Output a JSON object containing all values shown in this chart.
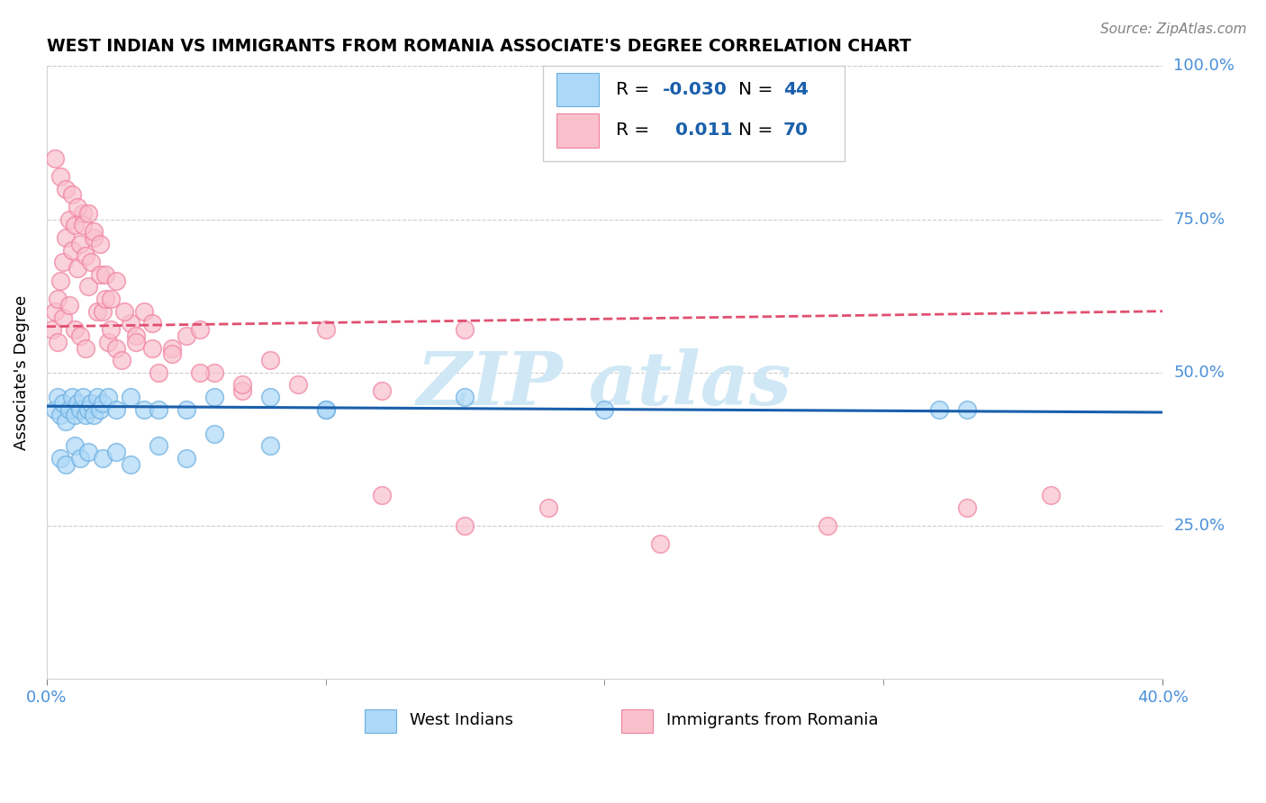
{
  "title": "WEST INDIAN VS IMMIGRANTS FROM ROMANIA ASSOCIATE'S DEGREE CORRELATION CHART",
  "source_text": "Source: ZipAtlas.com",
  "ylabel": "Associate's Degree",
  "xlim": [
    0.0,
    40.0
  ],
  "ylim": [
    0.0,
    100.0
  ],
  "yticks": [
    25.0,
    50.0,
    75.0,
    100.0
  ],
  "ytick_labels_right": [
    "25.0%",
    "50.0%",
    "75.0%",
    "100.0%"
  ],
  "color_blue_fill": "#ADD8F7",
  "color_blue_edge": "#6AAEE0",
  "color_pink_fill": "#F9C0CC",
  "color_pink_edge": "#F080A0",
  "color_trend_blue": "#1A5FAB",
  "color_trend_pink": "#E05070",
  "color_tick_label": "#4A90D9",
  "color_grid": "#CCCCCC",
  "watermark_color": "#D0E8F5",
  "scatter_blue_x": [
    0.3,
    0.4,
    0.5,
    0.6,
    0.7,
    0.8,
    0.9,
    1.0,
    1.1,
    1.2,
    1.3,
    1.4,
    1.5,
    1.6,
    1.7,
    1.8,
    1.9,
    2.0,
    2.2,
    2.5,
    3.0,
    3.5,
    4.0,
    5.0,
    6.0,
    8.0,
    10.0,
    15.0,
    20.0,
    32.0,
    33.0,
    0.5,
    0.7,
    1.0,
    1.2,
    1.5,
    2.0,
    2.5,
    3.0,
    4.0,
    5.0,
    6.0,
    8.0,
    10.0
  ],
  "scatter_blue_y": [
    44,
    46,
    43,
    45,
    42,
    44,
    46,
    43,
    45,
    44,
    46,
    43,
    44,
    45,
    43,
    46,
    44,
    45,
    46,
    44,
    46,
    44,
    44,
    44,
    46,
    46,
    44,
    46,
    44,
    44,
    44,
    36,
    35,
    38,
    36,
    37,
    36,
    37,
    35,
    38,
    36,
    40,
    38,
    44
  ],
  "scatter_pink_x": [
    0.2,
    0.3,
    0.4,
    0.5,
    0.6,
    0.7,
    0.8,
    0.9,
    1.0,
    1.1,
    1.2,
    1.3,
    1.4,
    1.5,
    1.6,
    1.7,
    1.8,
    1.9,
    2.0,
    2.1,
    2.2,
    2.3,
    2.5,
    2.7,
    3.0,
    3.2,
    3.5,
    3.8,
    4.0,
    4.5,
    5.0,
    5.5,
    6.0,
    7.0,
    8.0,
    10.0,
    12.0,
    15.0,
    0.3,
    0.5,
    0.7,
    0.9,
    1.1,
    1.3,
    1.5,
    1.7,
    1.9,
    2.1,
    2.3,
    2.5,
    2.8,
    3.2,
    3.8,
    4.5,
    5.5,
    7.0,
    9.0,
    12.0,
    15.0,
    18.0,
    22.0,
    28.0,
    33.0,
    36.0,
    0.4,
    0.6,
    0.8,
    1.0,
    1.2,
    1.4
  ],
  "scatter_pink_y": [
    57,
    60,
    62,
    65,
    68,
    72,
    75,
    70,
    74,
    67,
    71,
    76,
    69,
    64,
    68,
    72,
    60,
    66,
    60,
    62,
    55,
    57,
    54,
    52,
    58,
    56,
    60,
    58,
    50,
    54,
    56,
    57,
    50,
    47,
    52,
    57,
    47,
    57,
    85,
    82,
    80,
    79,
    77,
    74,
    76,
    73,
    71,
    66,
    62,
    65,
    60,
    55,
    54,
    53,
    50,
    48,
    48,
    30,
    25,
    28,
    22,
    25,
    28,
    30,
    55,
    59,
    61,
    57,
    56,
    54
  ],
  "blue_trend_y0": 44.5,
  "blue_trend_y1": 43.5,
  "pink_trend_y0": 57.5,
  "pink_trend_y1": 60.0
}
